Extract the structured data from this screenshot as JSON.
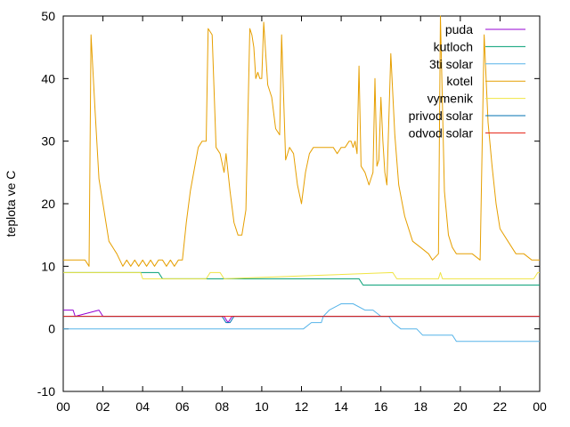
{
  "chart_data": {
    "type": "line",
    "title": "",
    "xlabel": "",
    "ylabel": "teplota ve C",
    "xlim": [
      0,
      24
    ],
    "ylim": [
      -10,
      50
    ],
    "x_tick_labels": [
      "00",
      "02",
      "04",
      "06",
      "08",
      "10",
      "12",
      "14",
      "16",
      "18",
      "20",
      "22",
      "00"
    ],
    "y_tick_values": [
      -10,
      0,
      10,
      20,
      30,
      40,
      50
    ],
    "grid": false,
    "legend_position": "top-right",
    "series": [
      {
        "name": "puda",
        "color": "#9400d3",
        "x": [
          0,
          0.5,
          0.6,
          1.8,
          2,
          3.6,
          3.8,
          8.1,
          8.3,
          8.5,
          8.8,
          15,
          15.2,
          19.5,
          19.7,
          24
        ],
        "y": [
          3,
          3,
          2,
          3,
          2,
          2,
          2,
          2,
          1,
          2,
          2,
          2,
          2,
          2,
          2,
          2
        ]
      },
      {
        "name": "kutloch",
        "color": "#009e73",
        "x": [
          0,
          3.8,
          4.0,
          4.8,
          5.0,
          7.2,
          7.4,
          14.9,
          15.1,
          24
        ],
        "y": [
          9,
          9,
          9,
          9,
          8,
          8,
          8,
          8,
          7,
          7
        ]
      },
      {
        "name": "3ti solar",
        "color": "#56b4e9",
        "x": [
          0,
          11.9,
          12.1,
          12.5,
          13.0,
          13.1,
          13.4,
          14.0,
          14.6,
          15.2,
          15.6,
          16.0,
          16.4,
          16.6,
          17.0,
          17.8,
          18.1,
          18.3,
          19.6,
          19.8,
          24
        ],
        "y": [
          0,
          0,
          0,
          1,
          1,
          2,
          3,
          4,
          4,
          3,
          3,
          2,
          2,
          1,
          0,
          0,
          -1,
          -1,
          -1,
          -2,
          -2
        ]
      },
      {
        "name": "kotel",
        "color": "#e69f00",
        "x": [
          0,
          1.1,
          1.3,
          1.4,
          1.6,
          1.8,
          2.0,
          2.3,
          2.7,
          3.0,
          3.2,
          3.4,
          3.6,
          3.8,
          4.0,
          4.2,
          4.4,
          4.6,
          4.8,
          5.0,
          5.2,
          5.4,
          5.6,
          5.8,
          6.0,
          6.2,
          6.4,
          6.8,
          7.0,
          7.2,
          7.3,
          7.5,
          7.7,
          7.9,
          8.1,
          8.2,
          8.4,
          8.6,
          8.8,
          9.0,
          9.2,
          9.4,
          9.5,
          9.6,
          9.7,
          9.8,
          9.9,
          10.0,
          10.1,
          10.3,
          10.5,
          10.7,
          10.9,
          11.0,
          11.2,
          11.4,
          11.6,
          11.8,
          12.0,
          12.2,
          12.4,
          12.6,
          13.0,
          13.4,
          13.6,
          13.8,
          14.0,
          14.2,
          14.4,
          14.5,
          14.6,
          14.7,
          14.8,
          14.9,
          15.0,
          15.2,
          15.4,
          15.5,
          15.6,
          15.7,
          15.8,
          15.9,
          16.0,
          16.1,
          16.2,
          16.3,
          16.5,
          16.7,
          16.9,
          17.2,
          17.6,
          18.0,
          18.4,
          18.6,
          18.9,
          19.0,
          19.2,
          19.4,
          19.6,
          19.8,
          20.2,
          20.6,
          21.0,
          21.2,
          21.4,
          21.6,
          21.8,
          22.0,
          22.4,
          22.8,
          23.2,
          23.6,
          24
        ],
        "y": [
          11,
          11,
          10,
          47,
          35,
          24,
          20,
          14,
          12,
          10,
          11,
          10,
          11,
          10,
          11,
          10,
          11,
          10,
          11,
          11,
          10,
          11,
          10,
          11,
          11,
          17,
          22,
          29,
          30,
          30,
          48,
          47,
          29,
          28,
          25,
          28,
          22,
          17,
          15,
          15,
          19,
          48,
          47,
          45,
          40,
          41,
          40,
          40,
          49,
          39,
          37,
          32,
          31,
          47,
          27,
          29,
          28,
          23,
          20,
          25,
          28,
          29,
          29,
          29,
          29,
          28,
          29,
          29,
          30,
          30,
          29,
          30,
          28,
          42,
          26,
          25,
          23,
          24,
          25,
          40,
          26,
          27,
          37,
          30,
          25,
          23,
          44,
          31,
          23,
          18,
          14,
          13,
          12,
          11,
          12,
          50,
          22,
          15,
          13,
          12,
          12,
          12,
          11,
          47,
          33,
          26,
          20,
          16,
          14,
          12,
          12,
          11,
          11
        ]
      },
      {
        "name": "vymenik",
        "color": "#f0e442",
        "x": [
          0,
          3.9,
          4.0,
          7.2,
          7.4,
          7.9,
          8.1,
          16.6,
          16.8,
          18.9,
          19.0,
          19.1,
          23.7,
          23.9,
          24
        ],
        "y": [
          9,
          9,
          8,
          8,
          9,
          9,
          8,
          9,
          8,
          8,
          9,
          8,
          8,
          9,
          9
        ]
      },
      {
        "name": "privod solar",
        "color": "#0072b2",
        "x": [
          0,
          0.4,
          0.5,
          8.0,
          8.2,
          8.4,
          8.6,
          19.4,
          19.6,
          24
        ],
        "y": [
          2,
          2,
          2,
          2,
          1,
          1,
          2,
          2,
          2,
          2
        ]
      },
      {
        "name": "odvod solar",
        "color": "#e51e10",
        "x": [
          0,
          24
        ],
        "y": [
          2,
          2
        ]
      }
    ]
  }
}
